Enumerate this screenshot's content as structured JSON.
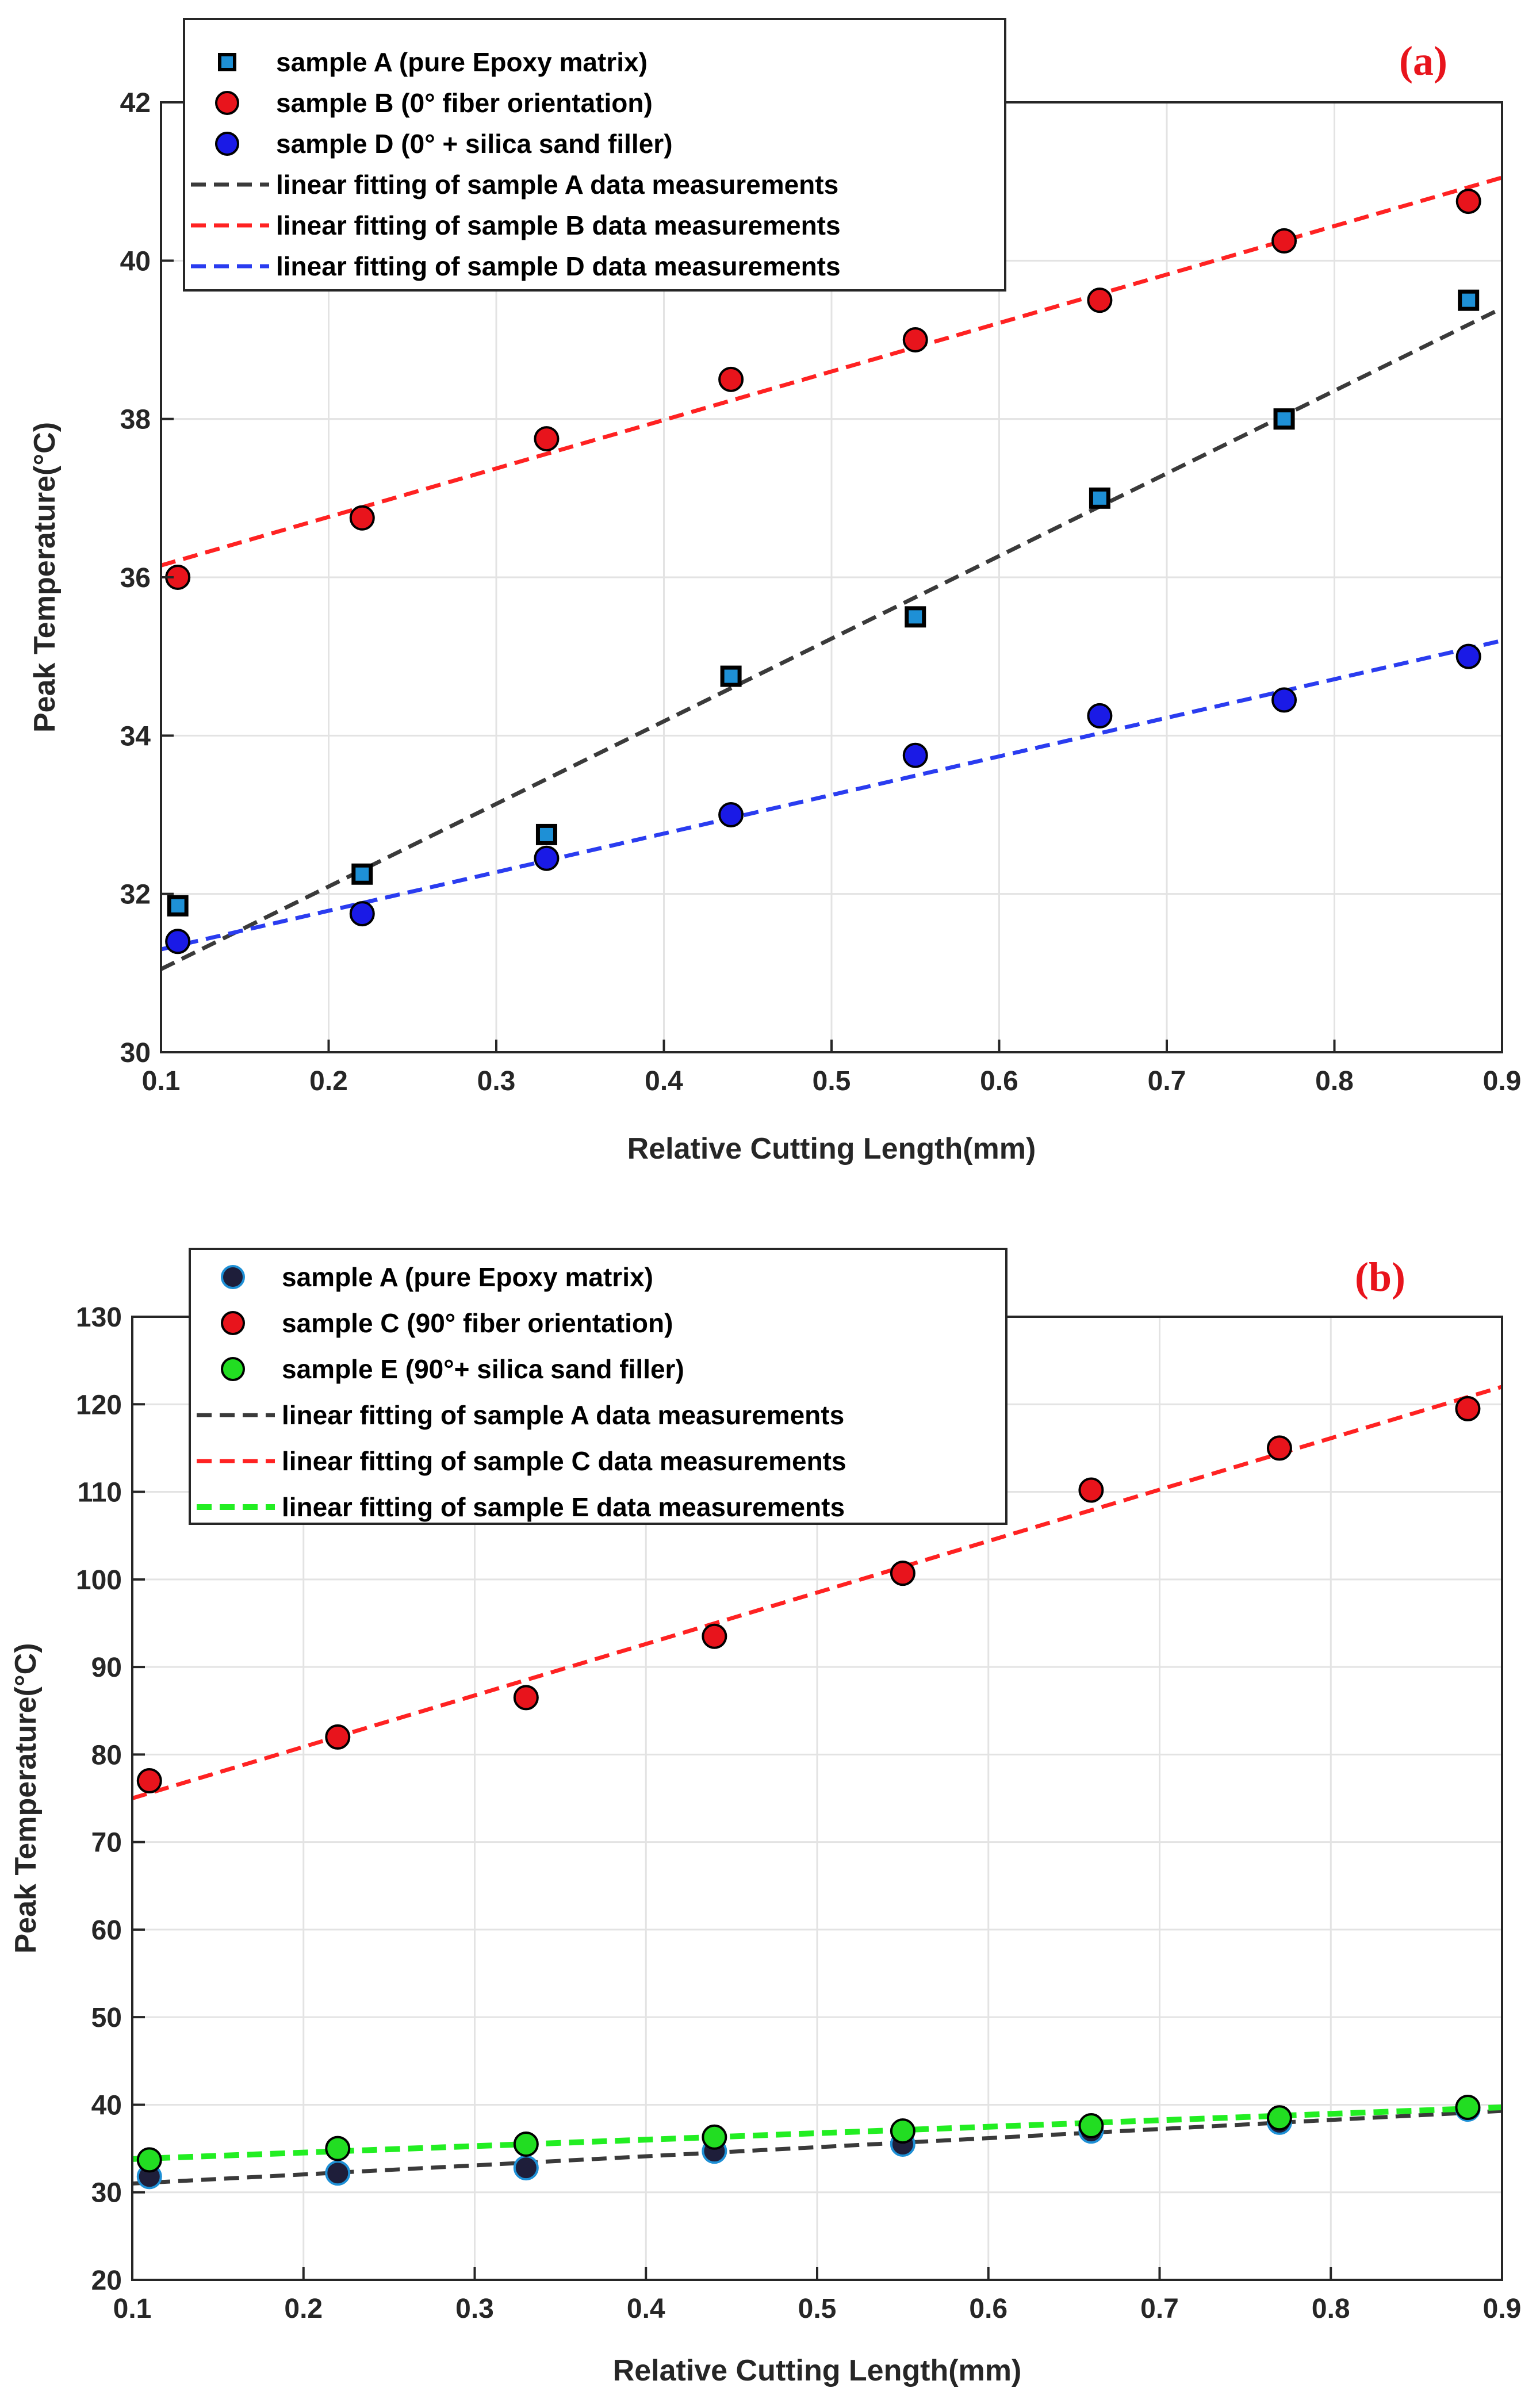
{
  "chart_data": [
    {
      "type": "scatter",
      "panel_label": "(a)",
      "panel_label_color": "#e8141c",
      "xlabel": "Relative Cutting Length(mm)",
      "ylabel": "Peak Temperature(°C)",
      "xlim": [
        0.1,
        0.9
      ],
      "ylim": [
        30,
        42
      ],
      "xticks": [
        "0.1",
        "0.2",
        "0.3",
        "0.4",
        "0.5",
        "0.6",
        "0.7",
        "0.8",
        "0.9"
      ],
      "yticks": [
        "30",
        "32",
        "34",
        "36",
        "38",
        "40",
        "42"
      ],
      "grid": true,
      "legend_position": "top-left",
      "x": [
        0.11,
        0.22,
        0.33,
        0.44,
        0.55,
        0.66,
        0.77,
        0.88
      ],
      "series": [
        {
          "name": "sample A (pure Epoxy matrix)",
          "marker": "square",
          "color": "#1e90d6",
          "edge": "#000000",
          "values": [
            31.85,
            32.25,
            32.75,
            34.75,
            35.5,
            37.0,
            38.0,
            39.5
          ]
        },
        {
          "name": " sample B (0° fiber orientation)",
          "marker": "circle",
          "color": "#e8141c",
          "edge": "#000000",
          "values": [
            36.0,
            36.75,
            37.75,
            38.5,
            39.0,
            39.5,
            40.25,
            40.75
          ]
        },
        {
          "name": " sample D (0° + silica sand filler)",
          "marker": "circle",
          "color": "#1a1ae6",
          "edge": "#000000",
          "values": [
            31.4,
            31.75,
            32.45,
            33.0,
            33.75,
            34.25,
            34.45,
            35.0
          ]
        }
      ],
      "fits": [
        {
          "name": "linear fitting of sample A data  measurements",
          "color": "#3a3a3a",
          "x": [
            0.1,
            0.9
          ],
          "y": [
            31.05,
            39.4
          ]
        },
        {
          "name": "linear fitting of sample B data  measurements",
          "color": "#ff2222",
          "x": [
            0.1,
            0.9
          ],
          "y": [
            36.15,
            41.05
          ]
        },
        {
          "name": "linear fitting of sample D data  measurements",
          "color": "#2a3cf0",
          "x": [
            0.1,
            0.9
          ],
          "y": [
            31.3,
            35.2
          ]
        }
      ]
    },
    {
      "type": "scatter",
      "panel_label": "(b)",
      "panel_label_color": "#e8141c",
      "xlabel": "Relative Cutting Length(mm)",
      "ylabel": "Peak Temperature(°C)",
      "xlim": [
        0.1,
        0.9
      ],
      "ylim": [
        20,
        130
      ],
      "xticks": [
        "0.1",
        "0.2",
        "0.3",
        "0.4",
        "0.5",
        "0.6",
        "0.7",
        "0.8",
        "0.9"
      ],
      "yticks": [
        "20",
        "30",
        "40",
        "50",
        "60",
        "70",
        "80",
        "90",
        "100",
        "110",
        "120",
        "130"
      ],
      "grid": true,
      "legend_position": "top-left",
      "x": [
        0.11,
        0.22,
        0.33,
        0.44,
        0.55,
        0.66,
        0.77,
        0.88
      ],
      "series": [
        {
          "name": "sample A (pure Epoxy matrix)",
          "marker": "circle",
          "color": "#1e1e3a",
          "edge": "#1e90d6",
          "values": [
            31.8,
            32.2,
            32.8,
            34.7,
            35.5,
            37.0,
            38.0,
            39.5
          ]
        },
        {
          "name": "sample C (90° fiber orientation)",
          "marker": "circle",
          "color": "#e8141c",
          "edge": "#000000",
          "values": [
            77.0,
            82.0,
            86.5,
            93.5,
            100.7,
            110.2,
            115.0,
            119.5
          ]
        },
        {
          "name": "sample E (90°+ silica sand filler)",
          "marker": "circle",
          "color": "#22dd22",
          "edge": "#000000",
          "values": [
            33.7,
            35.0,
            35.5,
            36.3,
            37.0,
            37.6,
            38.5,
            39.7
          ]
        }
      ],
      "fits": [
        {
          "name": "linear fitting of sample A data  measurements",
          "color": "#3a3a3a",
          "x": [
            0.1,
            0.9
          ],
          "y": [
            31.0,
            39.3
          ]
        },
        {
          "name": "linear fitting of sample C data  measurements",
          "color": "#ff2222",
          "x": [
            0.1,
            0.9
          ],
          "y": [
            75.0,
            122.0
          ]
        },
        {
          "name": "linear fitting of sample E data  measurements",
          "color": "#22ee22",
          "x": [
            0.1,
            0.9
          ],
          "y": [
            33.8,
            39.7
          ]
        }
      ]
    }
  ]
}
